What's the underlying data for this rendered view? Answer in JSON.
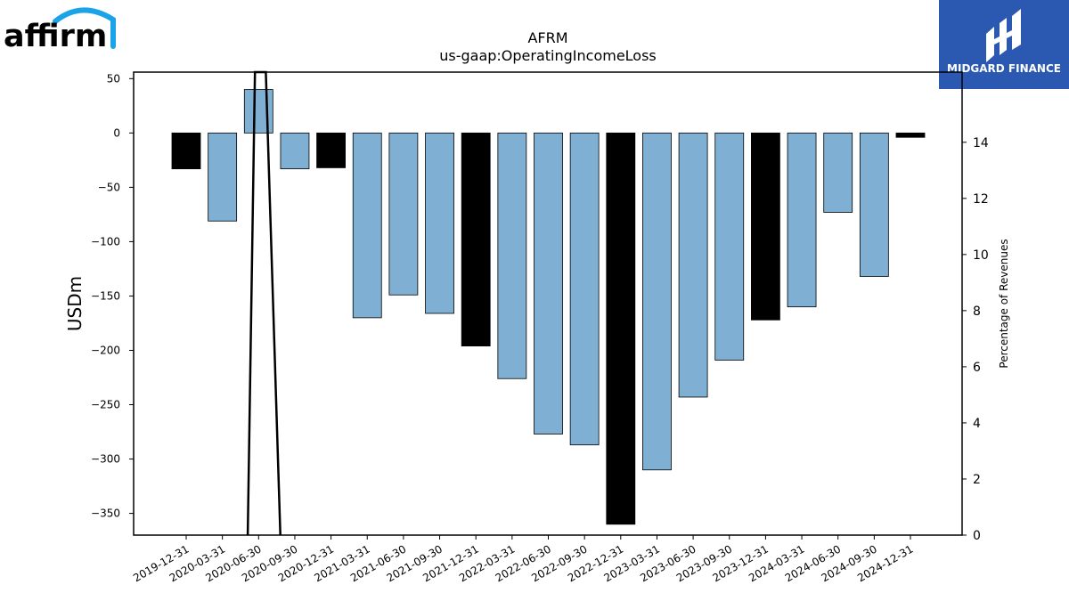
{
  "logos": {
    "left_brand": "affirm",
    "right_brand": "MIDGARD FINANCE",
    "right_brand_color": "#2b58b0",
    "left_brand_arc_color": "#1aa3e8"
  },
  "chart_data": {
    "type": "bar",
    "title": "AFRM",
    "subtitle": "us-gaap:OperatingIncomeLoss",
    "ylabel": "USDm",
    "y2label": "Percentage of Revenues",
    "categories": [
      "2019-12-31",
      "2020-03-31",
      "2020-06-30",
      "2020-09-30",
      "2020-12-31",
      "2021-03-31",
      "2021-06-30",
      "2021-09-30",
      "2021-12-31",
      "2022-03-31",
      "2022-06-30",
      "2022-09-30",
      "2022-12-31",
      "2023-03-31",
      "2023-06-30",
      "2023-09-30",
      "2023-12-31",
      "2024-03-31",
      "2024-06-30",
      "2024-09-30",
      "2024-12-31"
    ],
    "values": [
      -33,
      -81,
      40,
      -33,
      -32,
      -170,
      -149,
      -166,
      -196,
      -226,
      -277,
      -287,
      -360,
      -310,
      -243,
      -209,
      -172,
      -160,
      -73,
      -132,
      -4
    ],
    "bar_colors": [
      "#000000",
      "#7fb0d4",
      "#7fb0d4",
      "#7fb0d4",
      "#000000",
      "#7fb0d4",
      "#7fb0d4",
      "#7fb0d4",
      "#000000",
      "#7fb0d4",
      "#7fb0d4",
      "#7fb0d4",
      "#000000",
      "#7fb0d4",
      "#7fb0d4",
      "#7fb0d4",
      "#000000",
      "#7fb0d4",
      "#7fb0d4",
      "#7fb0d4",
      "#000000"
    ],
    "ylim": [
      -370,
      56
    ],
    "yticks": [
      50,
      0,
      -50,
      -100,
      -150,
      -200,
      -250,
      -300,
      -350
    ],
    "y2lim": [
      0,
      16.5
    ],
    "y2ticks": [
      0,
      2,
      4,
      6,
      8,
      10,
      12,
      14
    ],
    "percent_line": {
      "color": "#000000",
      "points": [
        [
          1.7,
          0
        ],
        [
          1.9,
          16.5
        ],
        [
          2.2,
          16.5
        ],
        [
          2.6,
          0
        ]
      ]
    },
    "grid": false,
    "legend": "none"
  }
}
